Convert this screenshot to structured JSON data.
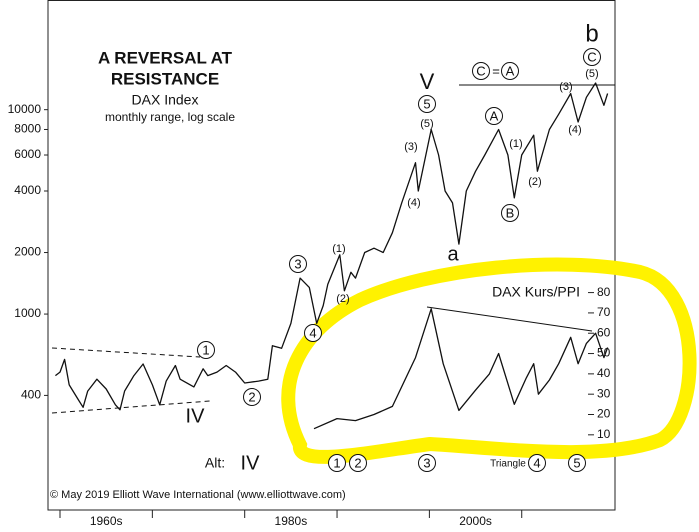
{
  "chart_data": {
    "type": "line",
    "title": [
      "A REVERSAL AT",
      "RESISTANCE"
    ],
    "subtitle": [
      "DAX Index",
      "monthly range, log scale"
    ],
    "log_scale": true,
    "xlim": [
      1958.7,
      2020.1
    ],
    "xticks": [
      1960,
      1970,
      1980,
      1990,
      2000,
      2010
    ],
    "xtick_labels": [
      {
        "value": 1965,
        "label": "1960s"
      },
      {
        "value": 1985,
        "label": "1980s"
      },
      {
        "value": 2005,
        "label": "2000s"
      }
    ],
    "ylim": [
      110,
      34400
    ],
    "yticks": [
      400,
      1000,
      2000,
      4000,
      6000,
      8000,
      10000
    ],
    "y2lim": [
      -27,
      224
    ],
    "y2ticks": [
      10,
      20,
      30,
      40,
      50,
      60,
      70,
      80
    ],
    "series": [
      {
        "name": "DAX Index",
        "color": "#111111",
        "x": [
          1959.5,
          1960,
          1960.5,
          1961,
          1962,
          1962.5,
          1963,
          1964,
          1965,
          1966,
          1966.5,
          1967,
          1968,
          1969,
          1970,
          1970.8,
          1971.5,
          1972.5,
          1973,
          1974.5,
          1975.5,
          1976,
          1977,
          1978,
          1979,
          1980,
          1981.5,
          1982.5,
          1983,
          1984,
          1985,
          1986,
          1987,
          1987.8,
          1988.5,
          1989,
          1990.3,
          1990.8,
          1991.5,
          1992,
          1993,
          1994,
          1995,
          1996,
          1997,
          1998.5,
          1998.8,
          2000.2,
          2001,
          2001.7,
          2002.5,
          2003.2,
          2004,
          2005,
          2006,
          2007.5,
          2008.5,
          2009.2,
          2010,
          2011.3,
          2011.7,
          2013,
          2014,
          2015.3,
          2016.1,
          2017,
          2018,
          2018.9,
          2019.3
        ],
        "values": [
          500,
          520,
          600,
          450,
          380,
          350,
          420,
          480,
          430,
          360,
          340,
          420,
          500,
          570,
          450,
          360,
          470,
          560,
          480,
          440,
          540,
          500,
          520,
          560,
          520,
          460,
          470,
          480,
          700,
          680,
          900,
          1500,
          1350,
          900,
          1100,
          1400,
          1950,
          1300,
          1600,
          1500,
          2000,
          2100,
          2000,
          2500,
          3500,
          5500,
          4000,
          8000,
          6000,
          4000,
          3500,
          2200,
          4000,
          5000,
          6000,
          8000,
          6000,
          3700,
          6000,
          7500,
          5000,
          8000,
          9500,
          12000,
          8700,
          11500,
          13500,
          10500,
          12000
        ]
      },
      {
        "name": "DAX Kurs/PPI",
        "color": "#111111",
        "axis": "y2",
        "x": [
          1987.5,
          1990,
          1992,
          1994,
          1996,
          1998.5,
          2000.2,
          2001.5,
          2003.2,
          2005,
          2006.5,
          2007.5,
          2009.2,
          2010.5,
          2011.3,
          2011.8,
          2013,
          2014,
          2015.3,
          2016.1,
          2017,
          2018,
          2018.9,
          2019.3
        ],
        "values": [
          13,
          18,
          17,
          20,
          24,
          48,
          72,
          45,
          22,
          32,
          40,
          50,
          25,
          38,
          45,
          30,
          37,
          45,
          58,
          45,
          55,
          60,
          48,
          53
        ]
      }
    ],
    "annotations": [
      "V",
      "5",
      "(5)",
      "(3)",
      "(4)",
      "a",
      "A",
      "B",
      "(1)",
      "(2)",
      "(3)",
      "(4)",
      "(5)",
      "C",
      "b",
      "C",
      "=",
      "A",
      "3",
      "(1)",
      "(2)",
      "4",
      "1",
      "2",
      "IV",
      "Alt:",
      "IV",
      "1",
      "2",
      "3",
      "Triangle",
      "4",
      "5"
    ],
    "copyright": "© May 2019 Elliott Wave International (www.elliottwave.com)"
  }
}
